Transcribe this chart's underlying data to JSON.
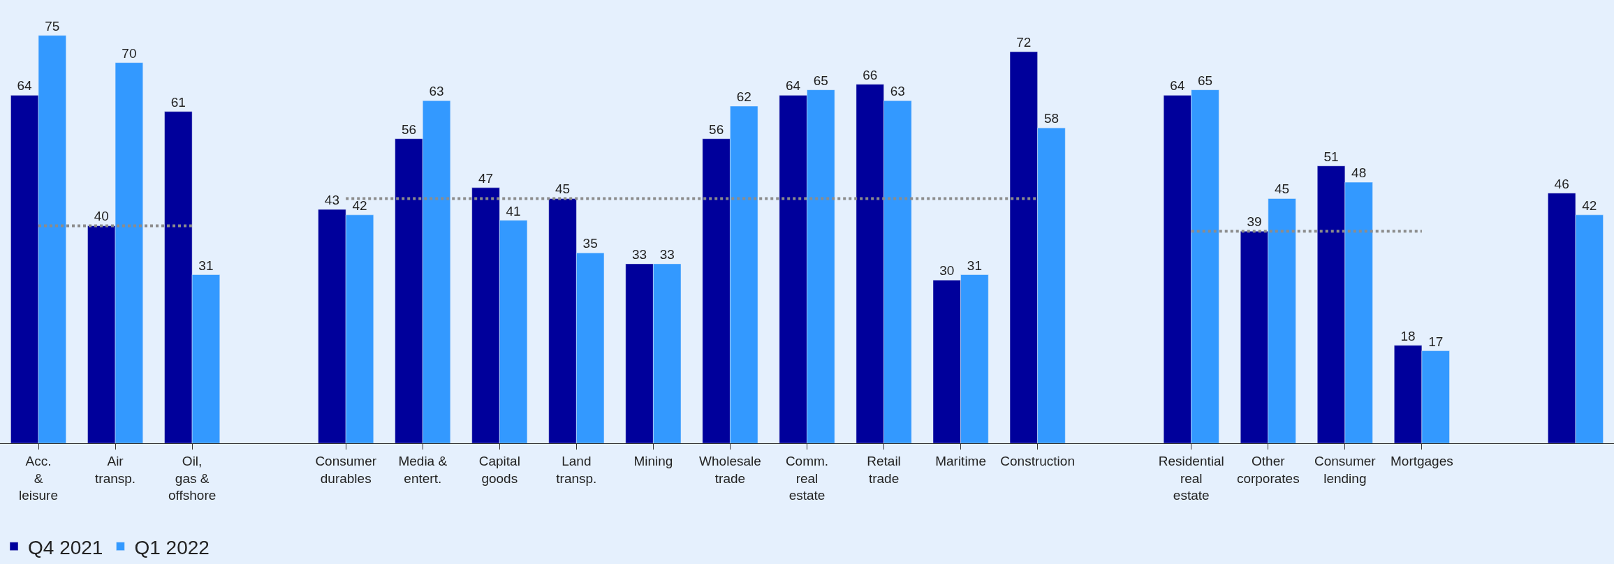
{
  "chart_data": {
    "type": "bar",
    "categories": [
      "Acc.\n&\nleisure",
      "Air\ntransp.",
      "Oil,\ngas &\noffshore",
      null,
      "Consumer\ndurables",
      "Media &\nentert.",
      "Capital\ngoods",
      "Land\ntransp.",
      "Mining",
      "Wholesale\ntrade",
      "Comm.\nreal\nestate",
      "Retail\ntrade",
      "Maritime",
      "Construction",
      null,
      "Residential\nreal\nestate",
      "Other\ncorporates",
      "Consumer\nlending",
      "Mortgages",
      null,
      null
    ],
    "series": [
      {
        "name": "Q4 2021",
        "color": "#00009b",
        "values": [
          64,
          40,
          61,
          null,
          43,
          56,
          47,
          45,
          33,
          56,
          64,
          66,
          30,
          72,
          null,
          64,
          39,
          51,
          18,
          null,
          46
        ],
        "value_labels": [
          "64",
          "40",
          "61",
          null,
          "43",
          "56",
          "47",
          "45",
          "33",
          "56",
          "64",
          "66",
          "30",
          "72",
          null,
          "64",
          "39",
          "51",
          "18",
          null,
          "46"
        ]
      },
      {
        "name": "Q1 2022",
        "color": "#3399ff",
        "values": [
          75,
          70,
          31,
          null,
          42,
          63,
          41,
          35,
          33,
          62,
          65,
          63,
          31,
          58,
          null,
          65,
          45,
          48,
          17,
          null,
          42
        ],
        "value_labels": [
          "75",
          "70",
          "31",
          null,
          "42",
          "63",
          "41",
          "35",
          "33",
          "62",
          "65",
          "63",
          "31",
          "58",
          null,
          "65",
          "45",
          "48",
          "17",
          null,
          "42"
        ]
      },
      {
        "type": "line",
        "color": "#8c8c8c",
        "line_style": "dotted",
        "marker": "none",
        "values": [
          40,
          40,
          40,
          null,
          45,
          45,
          45,
          45,
          45,
          45,
          45,
          45,
          45,
          45,
          null,
          39,
          39,
          39,
          39,
          null,
          null
        ]
      }
    ],
    "tick_labels": "x",
    "legend": "bottom left",
    "grid": false
  }
}
